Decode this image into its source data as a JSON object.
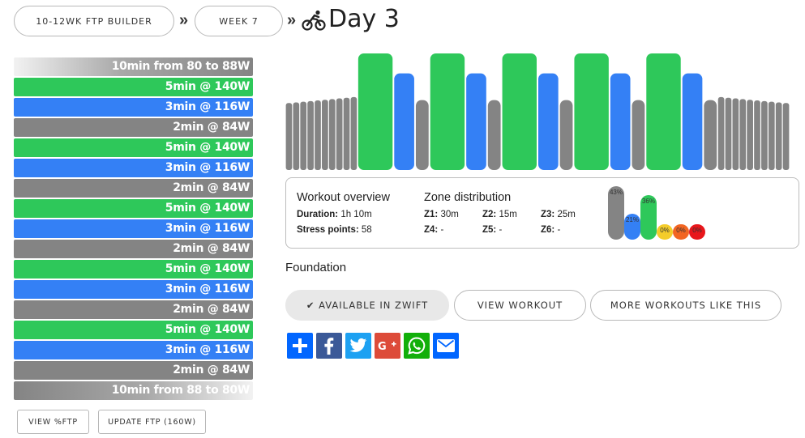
{
  "breadcrumb": {
    "plan_label": "10-12WK FTP BUILDER",
    "week_label": "WEEK 7",
    "separator": "»",
    "day_title": "Day 3"
  },
  "intervals": [
    {
      "label": "10min from 80 to 88W",
      "zone": "ramp-up"
    },
    {
      "label": "5min @ 140W",
      "zone": "green"
    },
    {
      "label": "3min @ 116W",
      "zone": "blue"
    },
    {
      "label": "2min @ 84W",
      "zone": "gray"
    },
    {
      "label": "5min @ 140W",
      "zone": "green"
    },
    {
      "label": "3min @ 116W",
      "zone": "blue"
    },
    {
      "label": "2min @ 84W",
      "zone": "gray"
    },
    {
      "label": "5min @ 140W",
      "zone": "green"
    },
    {
      "label": "3min @ 116W",
      "zone": "blue"
    },
    {
      "label": "2min @ 84W",
      "zone": "gray"
    },
    {
      "label": "5min @ 140W",
      "zone": "green"
    },
    {
      "label": "3min @ 116W",
      "zone": "blue"
    },
    {
      "label": "2min @ 84W",
      "zone": "gray"
    },
    {
      "label": "5min @ 140W",
      "zone": "green"
    },
    {
      "label": "3min @ 116W",
      "zone": "blue"
    },
    {
      "label": "2min @ 84W",
      "zone": "gray"
    },
    {
      "label": "10min from 88 to 80W",
      "zone": "ramp-down"
    }
  ],
  "left_buttons": {
    "view_ftp": "VIEW %FTP",
    "update_ftp": "UPDATE FTP (160W)"
  },
  "overview": {
    "heading": "Workout overview",
    "duration_label": "Duration:",
    "duration_value": "1h 10m",
    "stress_label": "Stress points:",
    "stress_value": "58"
  },
  "zones": {
    "heading": "Zone distribution",
    "items": [
      {
        "label": "Z1:",
        "value": "30m"
      },
      {
        "label": "Z2:",
        "value": "15m"
      },
      {
        "label": "Z3:",
        "value": "25m"
      },
      {
        "label": "Z4:",
        "value": "-"
      },
      {
        "label": "Z5:",
        "value": "-"
      },
      {
        "label": "Z6:",
        "value": "-"
      }
    ],
    "bars": [
      {
        "pct": 43,
        "label": "43%",
        "color": "#848484"
      },
      {
        "pct": 21,
        "label": "21%",
        "color": "#3480f5"
      },
      {
        "pct": 36,
        "label": "36%",
        "color": "#2ec85a"
      },
      {
        "pct": 0,
        "label": "0%",
        "color": "#f4cc2a"
      },
      {
        "pct": 0,
        "label": "0%",
        "color": "#f26522"
      },
      {
        "pct": 0,
        "label": "0%",
        "color": "#e8161b"
      }
    ]
  },
  "category": "Foundation",
  "actions": {
    "available": "✔ AVAILABLE IN ZWIFT",
    "view_workout": "VIEW WORKOUT",
    "more_like_this": "MORE WORKOUTS LIKE THIS"
  },
  "share": [
    {
      "icon": "plus-icon",
      "color": "#0166ff"
    },
    {
      "icon": "facebook-icon",
      "color": "#3b5998"
    },
    {
      "icon": "twitter-icon",
      "color": "#1da1f2"
    },
    {
      "icon": "google-plus-icon",
      "color": "#dd4b39"
    },
    {
      "icon": "whatsapp-icon",
      "color": "#12af0a"
    },
    {
      "icon": "email-icon",
      "color": "#0166ff"
    }
  ],
  "chart_data": {
    "type": "bar",
    "description_of_units": "power in watts per segment, duration in minutes",
    "segments": [
      {
        "minutes": 10,
        "watts_start": 80,
        "watts_end": 88,
        "zone": "gray"
      },
      {
        "minutes": 5,
        "watts": 140,
        "zone": "green"
      },
      {
        "minutes": 3,
        "watts": 116,
        "zone": "blue"
      },
      {
        "minutes": 2,
        "watts": 84,
        "zone": "gray"
      },
      {
        "minutes": 5,
        "watts": 140,
        "zone": "green"
      },
      {
        "minutes": 3,
        "watts": 116,
        "zone": "blue"
      },
      {
        "minutes": 2,
        "watts": 84,
        "zone": "gray"
      },
      {
        "minutes": 5,
        "watts": 140,
        "zone": "green"
      },
      {
        "minutes": 3,
        "watts": 116,
        "zone": "blue"
      },
      {
        "minutes": 2,
        "watts": 84,
        "zone": "gray"
      },
      {
        "minutes": 5,
        "watts": 140,
        "zone": "green"
      },
      {
        "minutes": 3,
        "watts": 116,
        "zone": "blue"
      },
      {
        "minutes": 2,
        "watts": 84,
        "zone": "gray"
      },
      {
        "minutes": 5,
        "watts": 140,
        "zone": "green"
      },
      {
        "minutes": 3,
        "watts": 116,
        "zone": "blue"
      },
      {
        "minutes": 2,
        "watts": 84,
        "zone": "gray"
      },
      {
        "minutes": 10,
        "watts_start": 88,
        "watts_end": 80,
        "zone": "gray"
      }
    ],
    "colors": {
      "gray": "#848484",
      "green": "#2ec85a",
      "blue": "#3480f5"
    }
  }
}
